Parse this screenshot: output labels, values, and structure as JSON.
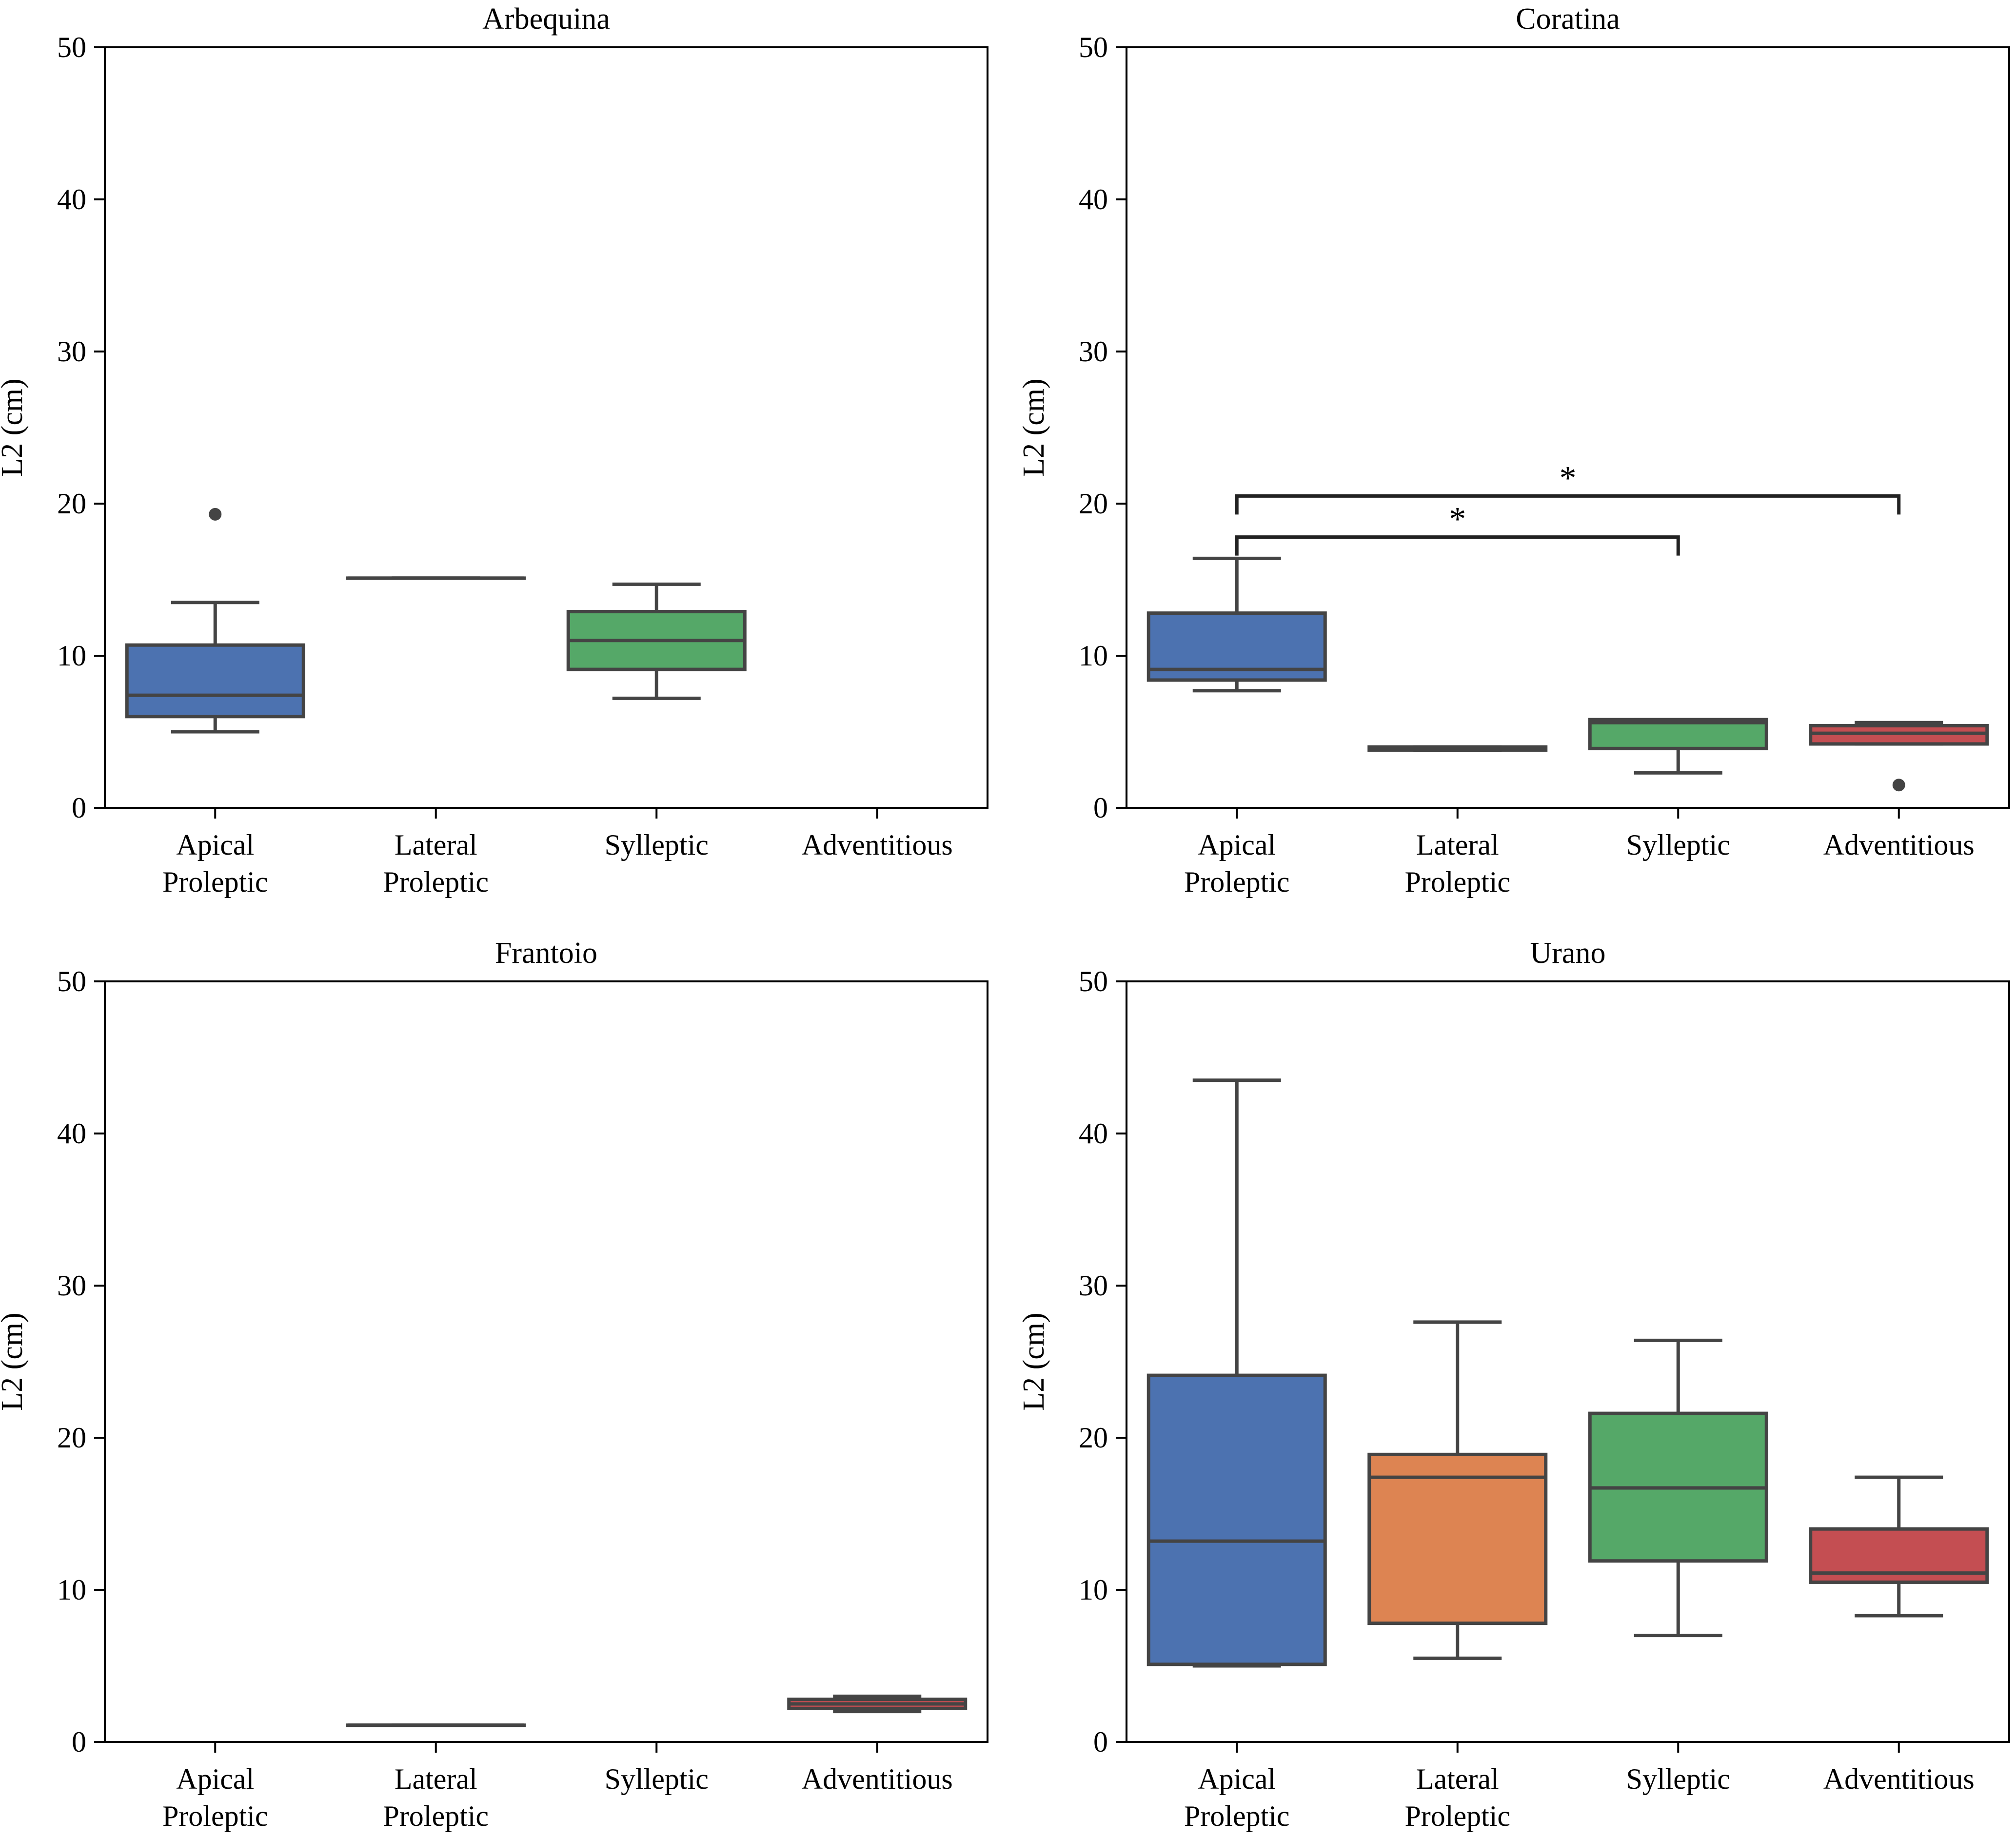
{
  "chart_data": [
    {
      "type": "box",
      "title": "Arbequina",
      "ylabel": "L2 (cm)",
      "ylim": [
        0,
        50
      ],
      "yticks": [
        "0",
        "10",
        "20",
        "30",
        "40",
        "50"
      ],
      "categories": [
        {
          "line1": "Apical",
          "line2": "Proleptic"
        },
        {
          "line1": "Lateral",
          "line2": "Proleptic"
        },
        {
          "line1": "Sylleptic",
          "line2": ""
        },
        {
          "line1": "Adventitious",
          "line2": ""
        }
      ],
      "boxes": [
        {
          "category": "Apical Proleptic",
          "whisker_low": 5.0,
          "q1": 6.0,
          "median": 7.4,
          "q3": 10.7,
          "whisker_high": 13.5,
          "outliers": [
            19.3
          ],
          "color": "#4c72b0"
        },
        {
          "category": "Lateral Proleptic",
          "whisker_low": 15.1,
          "q1": 15.1,
          "median": 15.1,
          "q3": 15.1,
          "whisker_high": 15.1,
          "outliers": [],
          "color": "#dd8452"
        },
        {
          "category": "Sylleptic",
          "whisker_low": 7.2,
          "q1": 9.1,
          "median": 11.0,
          "q3": 12.9,
          "whisker_high": 14.7,
          "outliers": [],
          "color": "#55a868"
        },
        null
      ],
      "annotations": []
    },
    {
      "type": "box",
      "title": "Coratina",
      "ylabel": "L2 (cm)",
      "ylim": [
        0,
        50
      ],
      "yticks": [
        "0",
        "10",
        "20",
        "30",
        "40",
        "50"
      ],
      "categories": [
        {
          "line1": "Apical",
          "line2": "Proleptic"
        },
        {
          "line1": "Lateral",
          "line2": "Proleptic"
        },
        {
          "line1": "Sylleptic",
          "line2": ""
        },
        {
          "line1": "Adventitious",
          "line2": ""
        }
      ],
      "boxes": [
        {
          "category": "Apical Proleptic",
          "whisker_low": 7.7,
          "q1": 8.4,
          "median": 9.1,
          "q3": 12.8,
          "whisker_high": 16.4,
          "outliers": [],
          "color": "#4c72b0"
        },
        {
          "category": "Lateral Proleptic",
          "whisker_low": 3.8,
          "q1": 3.8,
          "median": 3.9,
          "q3": 4.0,
          "whisker_high": 4.0,
          "outliers": [],
          "color": "#dd8452"
        },
        {
          "category": "Sylleptic",
          "whisker_low": 2.3,
          "q1": 3.9,
          "median": 5.6,
          "q3": 5.8,
          "whisker_high": 5.8,
          "outliers": [],
          "color": "#55a868"
        },
        {
          "category": "Adventitious",
          "whisker_low": 4.2,
          "q1": 4.2,
          "median": 4.9,
          "q3": 5.4,
          "whisker_high": 5.6,
          "outliers": [
            1.5
          ],
          "color": "#c44e52"
        }
      ],
      "annotations": [
        {
          "from": 0,
          "to": 2,
          "y": 17.8,
          "label": "*"
        },
        {
          "from": 0,
          "to": 3,
          "y": 20.5,
          "label": "*"
        }
      ]
    },
    {
      "type": "box",
      "title": "Frantoio",
      "ylabel": "L2 (cm)",
      "ylim": [
        0,
        50
      ],
      "yticks": [
        "0",
        "10",
        "20",
        "30",
        "40",
        "50"
      ],
      "categories": [
        {
          "line1": "Apical",
          "line2": "Proleptic"
        },
        {
          "line1": "Lateral",
          "line2": "Proleptic"
        },
        {
          "line1": "Sylleptic",
          "line2": ""
        },
        {
          "line1": "Adventitious",
          "line2": ""
        }
      ],
      "boxes": [
        null,
        {
          "category": "Lateral Proleptic",
          "whisker_low": 1.1,
          "q1": 1.1,
          "median": 1.1,
          "q3": 1.1,
          "whisker_high": 1.1,
          "outliers": [],
          "color": "#dd8452"
        },
        null,
        {
          "category": "Adventitious",
          "whisker_low": 2.0,
          "q1": 2.2,
          "median": 2.5,
          "q3": 2.8,
          "whisker_high": 3.0,
          "outliers": [],
          "color": "#c44e52"
        }
      ],
      "annotations": []
    },
    {
      "type": "box",
      "title": "Urano",
      "ylabel": "L2 (cm)",
      "ylim": [
        0,
        50
      ],
      "yticks": [
        "0",
        "10",
        "20",
        "30",
        "40",
        "50"
      ],
      "categories": [
        {
          "line1": "Apical",
          "line2": "Proleptic"
        },
        {
          "line1": "Lateral",
          "line2": "Proleptic"
        },
        {
          "line1": "Sylleptic",
          "line2": ""
        },
        {
          "line1": "Adventitious",
          "line2": ""
        }
      ],
      "boxes": [
        {
          "category": "Apical Proleptic",
          "whisker_low": 5.0,
          "q1": 5.1,
          "median": 13.2,
          "q3": 24.1,
          "whisker_high": 43.5,
          "outliers": [],
          "color": "#4c72b0"
        },
        {
          "category": "Lateral Proleptic",
          "whisker_low": 5.5,
          "q1": 7.8,
          "median": 17.4,
          "q3": 18.9,
          "whisker_high": 27.6,
          "outliers": [],
          "color": "#dd8452"
        },
        {
          "category": "Sylleptic",
          "whisker_low": 7.0,
          "q1": 11.9,
          "median": 16.7,
          "q3": 21.6,
          "whisker_high": 26.4,
          "outliers": [],
          "color": "#55a868"
        },
        {
          "category": "Adventitious",
          "whisker_low": 8.3,
          "q1": 10.5,
          "median": 11.1,
          "q3": 14.0,
          "whisker_high": 17.4,
          "outliers": [],
          "color": "#c44e52"
        }
      ],
      "annotations": []
    }
  ]
}
